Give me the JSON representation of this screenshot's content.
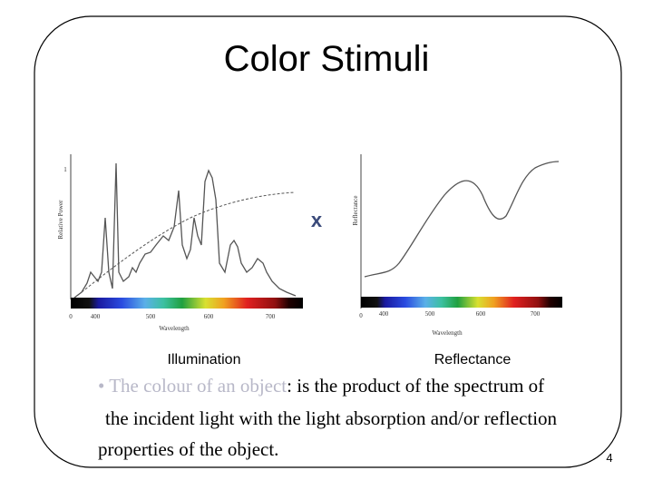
{
  "title": "Color Stimuli",
  "figures": [
    {
      "caption": "Illumination",
      "y_axis_label": "Relative Power",
      "y_tick": "1",
      "x_axis_label": "Wavelength",
      "x_ticks": [
        "0",
        "400",
        "500",
        "600",
        "700"
      ]
    },
    {
      "caption": "Reflectance",
      "y_axis_label": "Reflectance",
      "x_axis_label": "Wavelength",
      "x_ticks": [
        "0",
        "400",
        "500",
        "600",
        "700"
      ]
    }
  ],
  "operator": "x",
  "body": {
    "highlight": "• The colour of an object",
    "lines": [
      ": is the product of the spectrum of",
      "the incident light with the light absorption and/or reflection",
      "properties of the object."
    ]
  },
  "page_number": "4"
}
